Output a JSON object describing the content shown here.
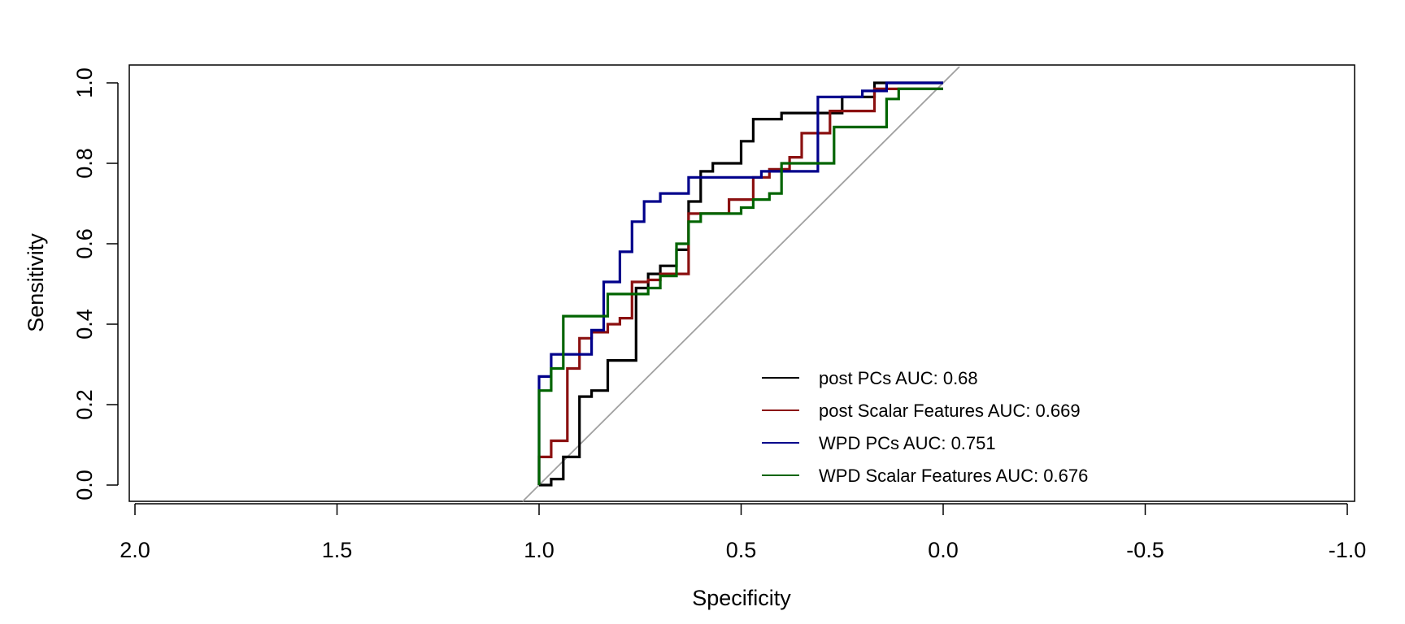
{
  "chart_data": {
    "type": "line",
    "title": "",
    "xlabel": "Specificity",
    "ylabel": "Sensitivity",
    "xlim": [
      2.0,
      -1.0
    ],
    "ylim": [
      0.0,
      1.0
    ],
    "x_reversed": true,
    "x_ticks": [
      2.0,
      1.5,
      1.0,
      0.5,
      0.0,
      -0.5,
      -1.0
    ],
    "x_tick_labels": [
      "2.0",
      "1.5",
      "1.0",
      "0.5",
      "0.0",
      "-0.5",
      "-1.0"
    ],
    "y_ticks": [
      0.0,
      0.2,
      0.4,
      0.6,
      0.8,
      1.0
    ],
    "y_tick_labels": [
      "0.0",
      "0.2",
      "0.4",
      "0.6",
      "0.8",
      "1.0"
    ],
    "grid": false,
    "legend_position": "bottom-right",
    "reference_line": {
      "from": [
        1.0,
        0.0
      ],
      "to": [
        0.0,
        1.0
      ],
      "color": "#a0a0a0"
    },
    "series": [
      {
        "name": "post PCs AUC: 0.68",
        "color": "#000000",
        "points": [
          [
            1.0,
            0.0
          ],
          [
            0.97,
            0.0
          ],
          [
            0.97,
            0.015
          ],
          [
            0.94,
            0.015
          ],
          [
            0.94,
            0.07
          ],
          [
            0.9,
            0.07
          ],
          [
            0.9,
            0.22
          ],
          [
            0.87,
            0.22
          ],
          [
            0.87,
            0.235
          ],
          [
            0.83,
            0.235
          ],
          [
            0.83,
            0.31
          ],
          [
            0.76,
            0.31
          ],
          [
            0.76,
            0.49
          ],
          [
            0.73,
            0.49
          ],
          [
            0.73,
            0.525
          ],
          [
            0.7,
            0.525
          ],
          [
            0.7,
            0.545
          ],
          [
            0.66,
            0.545
          ],
          [
            0.66,
            0.585
          ],
          [
            0.63,
            0.585
          ],
          [
            0.63,
            0.705
          ],
          [
            0.6,
            0.705
          ],
          [
            0.6,
            0.78
          ],
          [
            0.57,
            0.78
          ],
          [
            0.57,
            0.8
          ],
          [
            0.5,
            0.8
          ],
          [
            0.5,
            0.855
          ],
          [
            0.47,
            0.855
          ],
          [
            0.47,
            0.91
          ],
          [
            0.4,
            0.91
          ],
          [
            0.4,
            0.925
          ],
          [
            0.25,
            0.925
          ],
          [
            0.25,
            0.965
          ],
          [
            0.17,
            0.965
          ],
          [
            0.17,
            1.0
          ],
          [
            0.0,
            1.0
          ]
        ]
      },
      {
        "name": "post Scalar Features AUC: 0.669",
        "color": "#8b1010",
        "points": [
          [
            1.0,
            0.0
          ],
          [
            1.0,
            0.07
          ],
          [
            0.97,
            0.07
          ],
          [
            0.97,
            0.11
          ],
          [
            0.93,
            0.11
          ],
          [
            0.93,
            0.29
          ],
          [
            0.9,
            0.29
          ],
          [
            0.9,
            0.365
          ],
          [
            0.87,
            0.365
          ],
          [
            0.87,
            0.38
          ],
          [
            0.83,
            0.38
          ],
          [
            0.83,
            0.4
          ],
          [
            0.8,
            0.4
          ],
          [
            0.8,
            0.415
          ],
          [
            0.77,
            0.415
          ],
          [
            0.77,
            0.505
          ],
          [
            0.73,
            0.505
          ],
          [
            0.73,
            0.51
          ],
          [
            0.7,
            0.51
          ],
          [
            0.7,
            0.525
          ],
          [
            0.63,
            0.525
          ],
          [
            0.63,
            0.675
          ],
          [
            0.53,
            0.675
          ],
          [
            0.53,
            0.71
          ],
          [
            0.47,
            0.71
          ],
          [
            0.47,
            0.765
          ],
          [
            0.43,
            0.765
          ],
          [
            0.43,
            0.785
          ],
          [
            0.38,
            0.785
          ],
          [
            0.38,
            0.815
          ],
          [
            0.35,
            0.815
          ],
          [
            0.35,
            0.875
          ],
          [
            0.28,
            0.875
          ],
          [
            0.28,
            0.93
          ],
          [
            0.17,
            0.93
          ],
          [
            0.17,
            0.985
          ],
          [
            0.0,
            0.985
          ]
        ]
      },
      {
        "name": "WPD PCs AUC: 0.751",
        "color": "#00008b",
        "points": [
          [
            1.0,
            0.0
          ],
          [
            1.0,
            0.27
          ],
          [
            0.97,
            0.27
          ],
          [
            0.97,
            0.325
          ],
          [
            0.87,
            0.325
          ],
          [
            0.87,
            0.385
          ],
          [
            0.84,
            0.385
          ],
          [
            0.84,
            0.505
          ],
          [
            0.8,
            0.505
          ],
          [
            0.8,
            0.58
          ],
          [
            0.77,
            0.58
          ],
          [
            0.77,
            0.655
          ],
          [
            0.74,
            0.655
          ],
          [
            0.74,
            0.705
          ],
          [
            0.7,
            0.705
          ],
          [
            0.7,
            0.725
          ],
          [
            0.63,
            0.725
          ],
          [
            0.63,
            0.765
          ],
          [
            0.45,
            0.765
          ],
          [
            0.45,
            0.78
          ],
          [
            0.31,
            0.78
          ],
          [
            0.31,
            0.965
          ],
          [
            0.2,
            0.965
          ],
          [
            0.2,
            0.98
          ],
          [
            0.14,
            0.98
          ],
          [
            0.14,
            1.0
          ],
          [
            0.0,
            1.0
          ]
        ]
      },
      {
        "name": "WPD Scalar Features AUC: 0.676",
        "color": "#006400",
        "points": [
          [
            1.0,
            0.0
          ],
          [
            1.0,
            0.235
          ],
          [
            0.97,
            0.235
          ],
          [
            0.97,
            0.29
          ],
          [
            0.94,
            0.29
          ],
          [
            0.94,
            0.42
          ],
          [
            0.83,
            0.42
          ],
          [
            0.83,
            0.475
          ],
          [
            0.73,
            0.475
          ],
          [
            0.73,
            0.49
          ],
          [
            0.7,
            0.49
          ],
          [
            0.7,
            0.52
          ],
          [
            0.66,
            0.52
          ],
          [
            0.66,
            0.6
          ],
          [
            0.63,
            0.6
          ],
          [
            0.63,
            0.655
          ],
          [
            0.6,
            0.655
          ],
          [
            0.6,
            0.675
          ],
          [
            0.5,
            0.675
          ],
          [
            0.5,
            0.69
          ],
          [
            0.47,
            0.69
          ],
          [
            0.47,
            0.71
          ],
          [
            0.43,
            0.71
          ],
          [
            0.43,
            0.725
          ],
          [
            0.4,
            0.725
          ],
          [
            0.4,
            0.8
          ],
          [
            0.27,
            0.8
          ],
          [
            0.27,
            0.89
          ],
          [
            0.14,
            0.89
          ],
          [
            0.14,
            0.96
          ],
          [
            0.11,
            0.96
          ],
          [
            0.11,
            0.985
          ],
          [
            0.0,
            0.985
          ]
        ]
      }
    ]
  }
}
